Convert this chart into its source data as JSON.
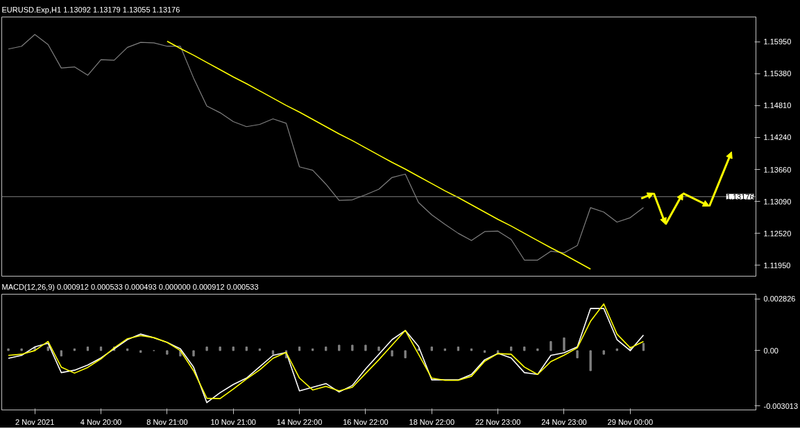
{
  "chart_data": [
    {
      "type": "line",
      "title": "EURUSD.Exp,H1  1.13092 1.13179 1.13055 1.13176",
      "grid": false,
      "categories": [
        null,
        null,
        null,
        null,
        null,
        null,
        null,
        null,
        null,
        null,
        null,
        null,
        null,
        null,
        null,
        null,
        null,
        null,
        null,
        null,
        null,
        null,
        null,
        null,
        null,
        null,
        null,
        null,
        null,
        null,
        null,
        null,
        null,
        null,
        null,
        null,
        null,
        null,
        null,
        null,
        null,
        null,
        null,
        null,
        null,
        null,
        null,
        null,
        null,
        null,
        null,
        null,
        null,
        null,
        null,
        null,
        null
      ],
      "ylim": [
        1.11752,
        1.16394
      ],
      "yticks": [
        {
          "value": 1.1195,
          "label": "1.11950"
        },
        {
          "value": 1.1252,
          "label": "1.12520"
        },
        {
          "value": 1.1309,
          "label": "1.13090"
        },
        {
          "value": 1.1366,
          "label": "1.13660"
        },
        {
          "value": 1.1424,
          "label": "1.14240"
        },
        {
          "value": 1.1481,
          "label": "1.14810"
        },
        {
          "value": 1.1538,
          "label": "1.15380"
        },
        {
          "value": 1.1595,
          "label": "1.15950"
        }
      ],
      "ref_lines": [
        {
          "axis": "y",
          "value": 1.13176,
          "label": "1.13176",
          "color": "#808080"
        }
      ],
      "series": [
        {
          "color": "#808080",
          "values": [
            1.1582,
            1.1587,
            1.1608,
            1.159,
            1.1548,
            1.155,
            1.1535,
            1.1563,
            1.1562,
            1.1585,
            1.1594,
            1.1593,
            1.1587,
            1.1587,
            1.153,
            1.148,
            1.1468,
            1.1452,
            1.1443,
            1.1447,
            1.1457,
            1.1449,
            1.1371,
            1.1365,
            1.134,
            1.1311,
            1.1312,
            1.1321,
            1.1331,
            1.1352,
            1.1358,
            1.1307,
            1.1285,
            1.1268,
            1.1252,
            1.1239,
            1.1255,
            1.1256,
            1.1241,
            1.1204,
            1.1204,
            1.122,
            1.1217,
            1.123,
            1.1298,
            1.129,
            1.1272,
            1.128,
            1.1298,
            null,
            null,
            null,
            null,
            null,
            null,
            null,
            null
          ]
        },
        {
          "color": "#ffff00",
          "values": [
            null,
            null,
            null,
            null,
            null,
            null,
            null,
            null,
            null,
            null,
            null,
            null,
            1.1596,
            1.1583,
            1.1571,
            1.1558,
            1.1545,
            1.1532,
            1.152,
            1.1507,
            1.1494,
            1.1481,
            1.1469,
            1.1456,
            1.1443,
            1.143,
            1.1418,
            1.1405,
            1.1392,
            1.1379,
            1.1367,
            1.1354,
            1.1341,
            1.1328,
            1.1316,
            1.1303,
            1.129,
            1.1277,
            1.1265,
            1.1252,
            1.1239,
            1.1226,
            1.1214,
            1.1201,
            1.1188,
            null,
            null,
            null,
            null,
            null,
            null,
            null,
            null,
            null,
            null,
            null,
            null
          ]
        }
      ]
    },
    {
      "type": "line",
      "title": "MACD(12,26,9) 0.000912 0.000533 0.000493 0.000000 0.000912 0.000533",
      "grid": false,
      "categories": [
        null,
        null,
        "2 Nov 2021",
        null,
        null,
        null,
        null,
        "4 Nov 20:00",
        null,
        null,
        null,
        null,
        "8 Nov 21:00",
        null,
        null,
        null,
        null,
        "10 Nov 21:00",
        null,
        null,
        null,
        null,
        "14 Nov 22:00",
        null,
        null,
        null,
        null,
        "16 Nov 22:00",
        null,
        null,
        null,
        null,
        "18 Nov 22:00",
        null,
        null,
        null,
        null,
        "22 Nov 23:00",
        null,
        null,
        null,
        null,
        "24 Nov 23:00",
        null,
        null,
        null,
        null,
        "29 Nov 00:00",
        null,
        null,
        null,
        null,
        null,
        null,
        null,
        null,
        null
      ],
      "ylim": [
        -0.00324,
        0.00308
      ],
      "yticks": [
        {
          "value": -0.003013,
          "label": "-0.003013"
        },
        {
          "value": 0,
          "label": "0.00"
        },
        {
          "value": 0.002826,
          "label": "0.002826"
        }
      ],
      "series": [
        {
          "type": "bar",
          "color": "#808080",
          "values": [
            0.0001,
            0.0001,
            0.0002,
            0.0002,
            -0.0003,
            0.0001,
            0.0002,
            0.0002,
            0.0002,
            0.0001,
            -0.0001,
            0.0,
            -0.0002,
            -0.0003,
            -0.0003,
            0.0002,
            0.0002,
            0.0002,
            0.0002,
            0.0001,
            -0.0002,
            -0.0004,
            0.0002,
            0.0001,
            0.0002,
            0.0003,
            0.0003,
            0.0003,
            0.0002,
            -0.0003,
            -0.0004,
            0.0001,
            0.0002,
            0.0001,
            0.0002,
            0.0001,
            -0.0001,
            -0.0002,
            0.0002,
            0.0002,
            0.0001,
            0.0005,
            0.0007,
            -0.0004,
            -0.0011,
            -0.0002,
            0.0001,
            0.0002,
            0.0004,
            null,
            null,
            null,
            null,
            null,
            null,
            null,
            null
          ]
        },
        {
          "color": "#ffffff",
          "values": [
            -0.00042,
            -0.00026,
            0.0002,
            0.0004,
            -0.0012,
            -0.00107,
            -0.00079,
            -0.0004,
            0.0001,
            0.0006,
            0.0009,
            0.0007,
            0.00045,
            0.0001,
            -0.0009,
            -0.00284,
            -0.0023,
            -0.00185,
            -0.0015,
            -0.00088,
            -0.00026,
            -0.0001,
            -0.0022,
            -0.002,
            -0.0018,
            -0.00226,
            -0.0019,
            -0.001,
            -0.0002,
            0.0006,
            0.0011,
            0.00023,
            -0.0016,
            -0.0016,
            -0.0016,
            -0.0013,
            -0.0005,
            -0.00015,
            -0.0004,
            -0.0012,
            -0.0013,
            -0.00026,
            -0.00012,
            0.0002,
            0.0023,
            0.0023,
            0.0006,
            0.0,
            0.00085,
            null,
            null,
            null,
            null,
            null,
            null,
            null,
            null
          ]
        },
        {
          "color": "#ffff00",
          "values": [
            -0.00026,
            -0.0002,
            0.0,
            0.0005,
            -0.0009,
            -0.00123,
            -0.00092,
            -0.00045,
            0.00015,
            0.00065,
            0.00082,
            0.00071,
            0.00045,
            0.0,
            -0.0011,
            -0.0026,
            -0.00262,
            -0.0021,
            -0.00155,
            -0.00105,
            -0.00042,
            -0.0001,
            -0.0015,
            -0.00215,
            -0.00195,
            -0.0022,
            -0.002,
            -0.00125,
            -0.0005,
            0.0003,
            0.0011,
            -0.0002,
            -0.0015,
            -0.00162,
            -0.00162,
            -0.0014,
            -0.00058,
            -0.00016,
            -0.0002,
            -0.0009,
            -0.0013,
            -0.0006,
            -0.00025,
            0.00015,
            0.0016,
            0.00255,
            0.0009,
            0.00015,
            0.0005,
            null,
            null,
            null,
            null,
            null,
            null,
            null,
            null
          ]
        }
      ]
    }
  ]
}
